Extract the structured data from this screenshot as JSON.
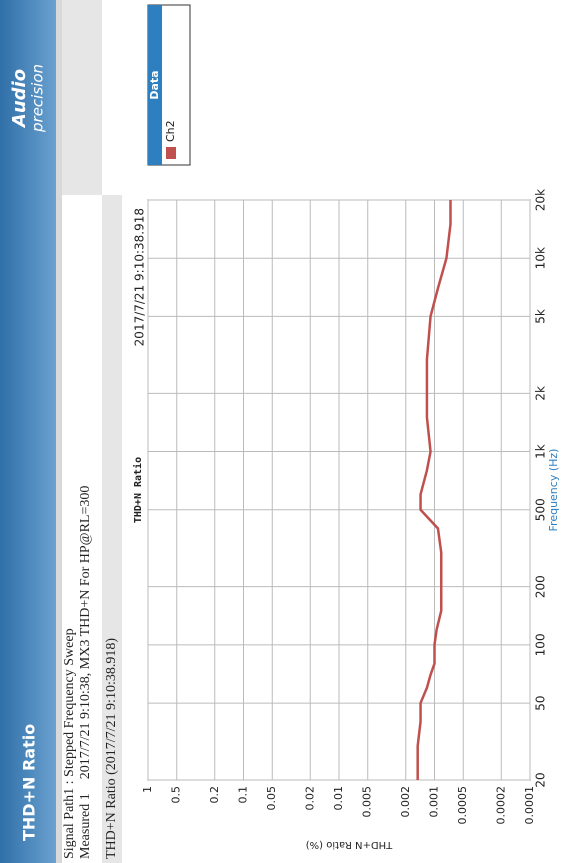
{
  "header": {
    "title": "THD+N Ratio",
    "logo": [
      "Audio",
      "precision"
    ]
  },
  "info": [
    "Signal Path1 : Stepped Frequency Sweep",
    "Measured 1    2017/7/21 9:10:38, MX3 THD+N For HP@RL=300",
    "THD+N Ratio (2017/7/21 9:10:38.918)"
  ],
  "legend": {
    "title": "Data"
  },
  "chart_data": {
    "type": "line",
    "title": "THD+N Ratio",
    "timestamp": "2017/7/21 9:10:38.918",
    "xlabel": "Frequency (Hz)",
    "ylabel": "THD+N Ratio (%)",
    "x": [
      20,
      30,
      40,
      50,
      60,
      70,
      80,
      100,
      120,
      150,
      200,
      300,
      400,
      500,
      600,
      800,
      1000,
      1500,
      2000,
      3000,
      5000,
      7000,
      10000,
      15000,
      20000
    ],
    "series": [
      {
        "name": "Ch2",
        "color": "#c0504d",
        "values": [
          0.0015,
          0.0015,
          0.0014,
          0.0014,
          0.0012,
          0.0011,
          0.001,
          0.001,
          0.00095,
          0.00085,
          0.00085,
          0.00085,
          0.00092,
          0.0014,
          0.0014,
          0.0012,
          0.0011,
          0.0012,
          0.0012,
          0.0012,
          0.0011,
          0.00092,
          0.00075,
          0.00068,
          0.00068
        ]
      }
    ],
    "xlim": [
      20,
      20000
    ],
    "ylim": [
      0.0001,
      1
    ],
    "xscale": "log",
    "yscale": "log",
    "grid": true,
    "xticks": [
      20,
      50,
      100,
      200,
      500,
      {
        "value": 1000,
        "label": "1k"
      },
      {
        "value": 2000,
        "label": "2k"
      },
      {
        "value": 5000,
        "label": "5k"
      },
      {
        "value": 10000,
        "label": "10k"
      },
      {
        "value": 20000,
        "label": "20k"
      }
    ],
    "yticks": [
      1,
      0.5,
      0.2,
      0.1,
      0.05,
      0.02,
      0.01,
      0.005,
      0.002,
      0.001,
      0.0005,
      0.0002,
      0.0001
    ]
  }
}
